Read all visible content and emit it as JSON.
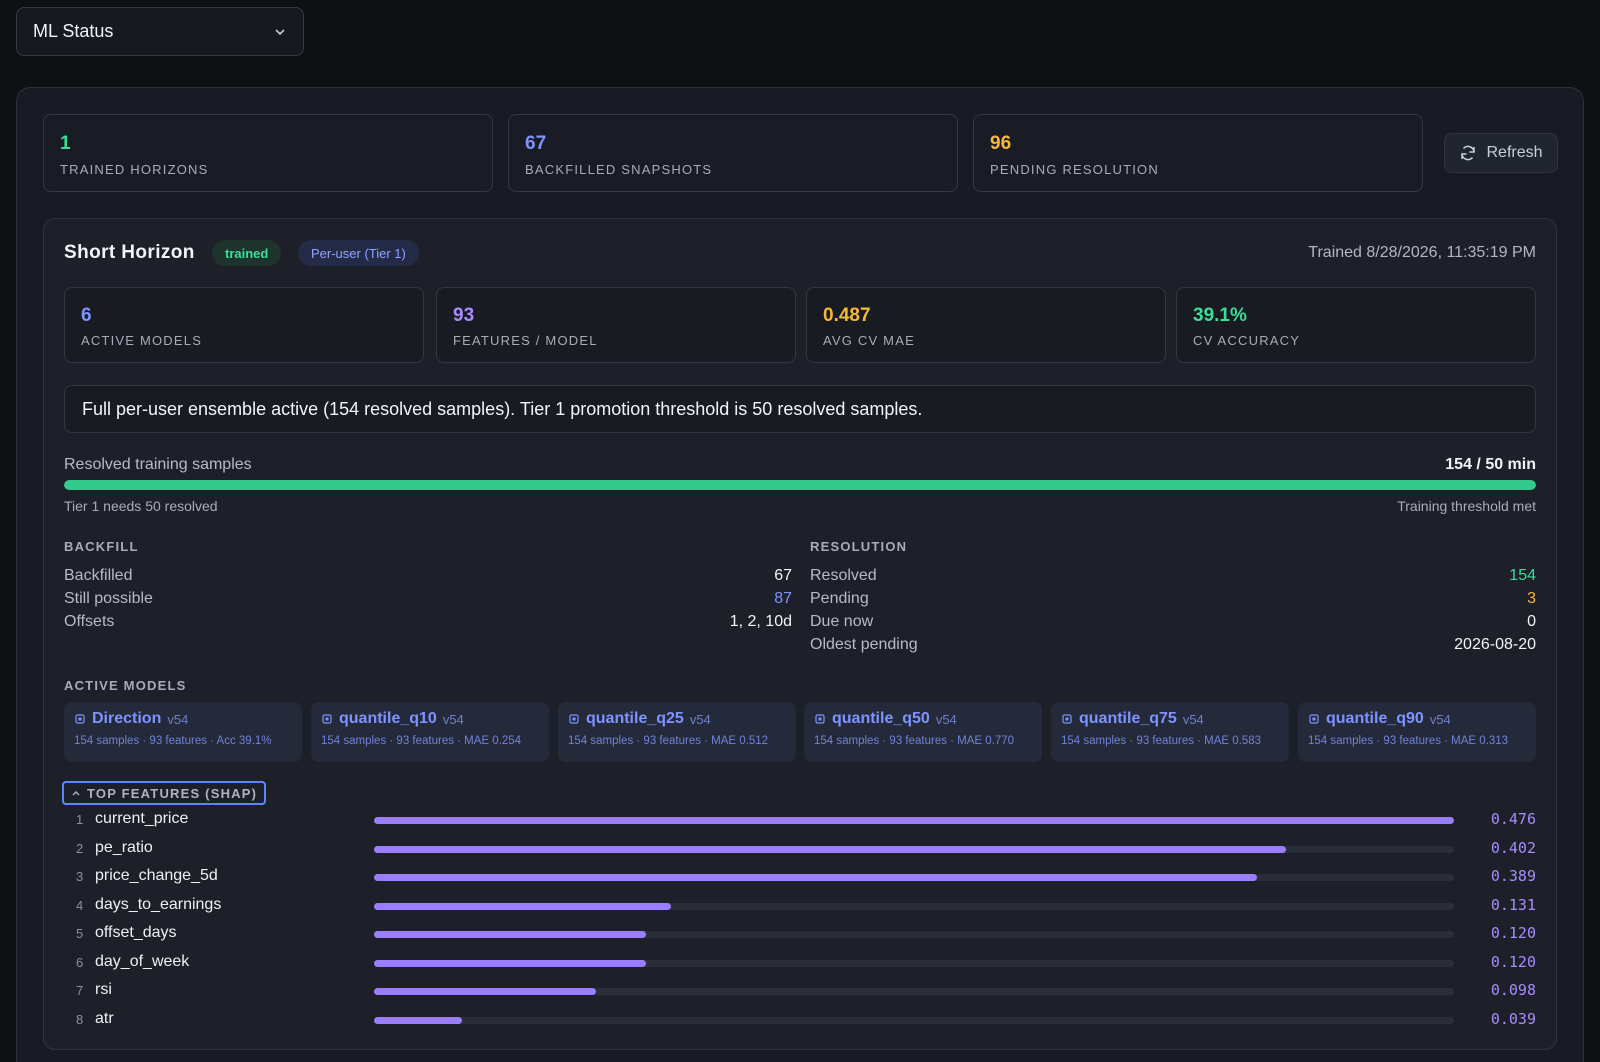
{
  "header": {
    "selector_value": "ML Status",
    "chevron_icon": "chevron-down-icon"
  },
  "stats": [
    {
      "value": "1",
      "label": "TRAINED HORIZONS",
      "color": "#3ddc97"
    },
    {
      "value": "67",
      "label": "BACKFILLED SNAPSHOTS",
      "color": "#7d93ff"
    },
    {
      "value": "96",
      "label": "PENDING RESOLUTION",
      "color": "#f5b83a"
    }
  ],
  "refresh": {
    "label": "Refresh",
    "icon": "refresh-icon"
  },
  "horizon": {
    "title": "Short Horizon",
    "badge_trained": "trained",
    "badge_tier": "Per-user (Tier 1)",
    "trained_at": "Trained 8/28/2026, 11:35:19 PM",
    "metrics": [
      {
        "value": "6",
        "label": "ACTIVE MODELS",
        "color": "#7d93ff"
      },
      {
        "value": "93",
        "label": "FEATURES / MODEL",
        "color": "#a88bff"
      },
      {
        "value": "0.487",
        "label": "AVG CV MAE",
        "color": "#f5b83a"
      },
      {
        "value": "39.1%",
        "label": "CV ACCURACY",
        "color": "#3ddc97"
      }
    ],
    "info": "Full per-user ensemble active (154 resolved samples). Tier 1 promotion threshold is 50 resolved samples.",
    "progress": {
      "label": "Resolved training samples",
      "value": "154 / 50 min",
      "fill_fraction": 1.0,
      "left_note": "Tier 1 needs 50 resolved",
      "right_note": "Training threshold met"
    },
    "backfill": {
      "title": "BACKFILL",
      "rows": [
        {
          "k": "Backfilled",
          "v": "67",
          "color": "#f2f4f7"
        },
        {
          "k": "Still possible",
          "v": "87",
          "color": "#7d93ff"
        },
        {
          "k": "Offsets",
          "v": "1, 2, 10d",
          "color": "#f2f4f7"
        }
      ]
    },
    "resolution": {
      "title": "RESOLUTION",
      "rows": [
        {
          "k": "Resolved",
          "v": "154",
          "color": "#3ddc97"
        },
        {
          "k": "Pending",
          "v": "3",
          "color": "#f5b83a"
        },
        {
          "k": "Due now",
          "v": "0",
          "color": "#f2f4f7"
        },
        {
          "k": "Oldest pending",
          "v": "2026-08-20",
          "color": "#f2f4f7"
        }
      ]
    },
    "active_models_title": "ACTIVE MODELS",
    "models": [
      {
        "name": "Direction",
        "version": "v54",
        "sub": "154 samples · 93 features · Acc 39.1%"
      },
      {
        "name": "quantile_q10",
        "version": "v54",
        "sub": "154 samples · 93 features · MAE 0.254"
      },
      {
        "name": "quantile_q25",
        "version": "v54",
        "sub": "154 samples · 93 features · MAE 0.512"
      },
      {
        "name": "quantile_q50",
        "version": "v54",
        "sub": "154 samples · 93 features · MAE 0.770"
      },
      {
        "name": "quantile_q75",
        "version": "v54",
        "sub": "154 samples · 93 features · MAE 0.583"
      },
      {
        "name": "quantile_q90",
        "version": "v54",
        "sub": "154 samples · 93 features · MAE 0.313"
      }
    ],
    "shap_title": "TOP FEATURES (SHAP)",
    "features": [
      {
        "rank": "1",
        "name": "current_price",
        "value": "0.476",
        "v": 0.476
      },
      {
        "rank": "2",
        "name": "pe_ratio",
        "value": "0.402",
        "v": 0.402
      },
      {
        "rank": "3",
        "name": "price_change_5d",
        "value": "0.389",
        "v": 0.389
      },
      {
        "rank": "4",
        "name": "days_to_earnings",
        "value": "0.131",
        "v": 0.131
      },
      {
        "rank": "5",
        "name": "offset_days",
        "value": "0.120",
        "v": 0.12
      },
      {
        "rank": "6",
        "name": "day_of_week",
        "value": "0.120",
        "v": 0.12
      },
      {
        "rank": "7",
        "name": "rsi",
        "value": "0.098",
        "v": 0.098
      },
      {
        "rank": "8",
        "name": "atr",
        "value": "0.039",
        "v": 0.039
      }
    ]
  }
}
